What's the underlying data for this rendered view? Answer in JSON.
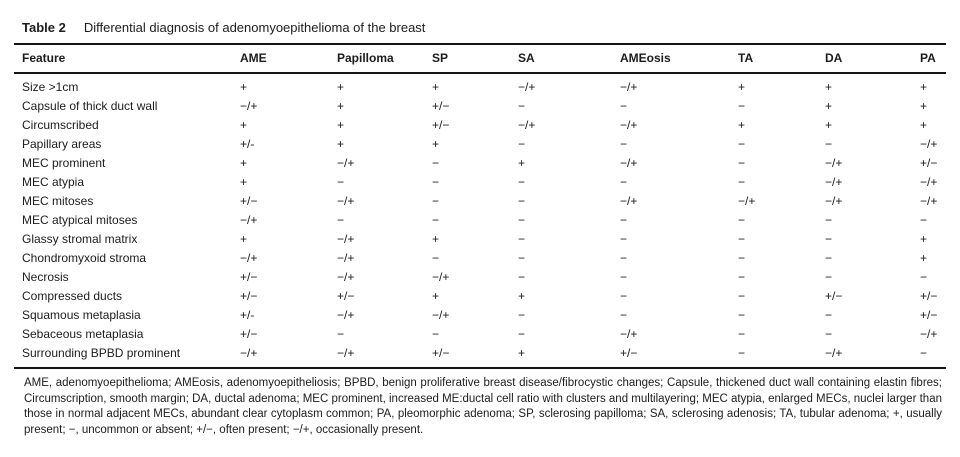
{
  "table": {
    "label": "Table 2",
    "title": "Differential diagnosis of adenomyoepithelioma of the breast",
    "columns": [
      "Feature",
      "AME",
      "Papilloma",
      "SP",
      "SA",
      "AMEosis",
      "TA",
      "DA",
      "PA"
    ],
    "rows": [
      {
        "feature": "Size >1cm",
        "values": [
          "+",
          "+",
          "+",
          "−/+",
          "−/+",
          "+",
          "+",
          "+"
        ]
      },
      {
        "feature": "Capsule of thick duct wall",
        "values": [
          "−/+",
          "+",
          "+/−",
          "−",
          "−",
          "−",
          "+",
          "+"
        ]
      },
      {
        "feature": "Circumscribed",
        "values": [
          "+",
          "+",
          "+/−",
          "−/+",
          "−/+",
          "+",
          "+",
          "+"
        ]
      },
      {
        "feature": "Papillary areas",
        "values": [
          "+/-",
          "+",
          "+",
          "−",
          "−",
          "−",
          "−",
          "−/+"
        ]
      },
      {
        "feature": "MEC prominent",
        "values": [
          "+",
          "−/+",
          "−",
          "+",
          "−/+",
          "−",
          "−/+",
          "+/−"
        ]
      },
      {
        "feature": "MEC atypia",
        "values": [
          "+",
          "−",
          "−",
          "−",
          "−",
          "−",
          "−/+",
          "−/+"
        ]
      },
      {
        "feature": "MEC mitoses",
        "values": [
          "+/−",
          "−/+",
          "−",
          "−",
          "−/+",
          "−/+",
          "−/+",
          "−/+"
        ]
      },
      {
        "feature": "MEC atypical mitoses",
        "values": [
          "−/+",
          "−",
          "−",
          "−",
          "−",
          "−",
          "−",
          "−"
        ]
      },
      {
        "feature": "Glassy stromal matrix",
        "values": [
          "+",
          "−/+",
          "+",
          "−",
          "−",
          "−",
          "−",
          "+"
        ]
      },
      {
        "feature": "Chondromyxoid stroma",
        "values": [
          "−/+",
          "−/+",
          "−",
          "−",
          "−",
          "−",
          "−",
          "+"
        ]
      },
      {
        "feature": "Necrosis",
        "values": [
          "+/−",
          "−/+",
          "−/+",
          "−",
          "−",
          "−",
          "−",
          "−"
        ]
      },
      {
        "feature": "Compressed ducts",
        "values": [
          "+/−",
          "+/−",
          "+",
          "+",
          "−",
          "−",
          "+/−",
          "+/−"
        ]
      },
      {
        "feature": "Squamous metaplasia",
        "values": [
          "+/-",
          "−/+",
          "−/+",
          "−",
          "−",
          "−",
          "−",
          "+/−"
        ]
      },
      {
        "feature": "Sebaceous metaplasia",
        "values": [
          "+/−",
          "−",
          "−",
          "−",
          "−/+",
          "−",
          "−",
          "−/+"
        ]
      },
      {
        "feature": "Surrounding BPBD prominent",
        "values": [
          "−/+",
          "−/+",
          "+/−",
          "+",
          "+/−",
          "−",
          "−/+",
          "−"
        ]
      }
    ],
    "footnote": "AME, adenomyoepithelioma; AMEosis, adenomyoepitheliosis; BPBD, benign proliferative breast disease/fibrocystic changes; Capsule, thickened duct wall containing elastin fibres; Circumscription, smooth margin; DA, ductal adenoma; MEC prominent, increased ME:ductal cell ratio with clusters and multilayering; MEC atypia, enlarged MECs, nuclei larger than those in normal adjacent MECs, abundant clear cytoplasm common; PA, pleomorphic adenoma; SP, sclerosing papilloma; SA, sclerosing adenosis; TA, tubular adenoma; +, usually present; −, uncommon or absent; +/−, often present; −/+, occasionally present."
  }
}
